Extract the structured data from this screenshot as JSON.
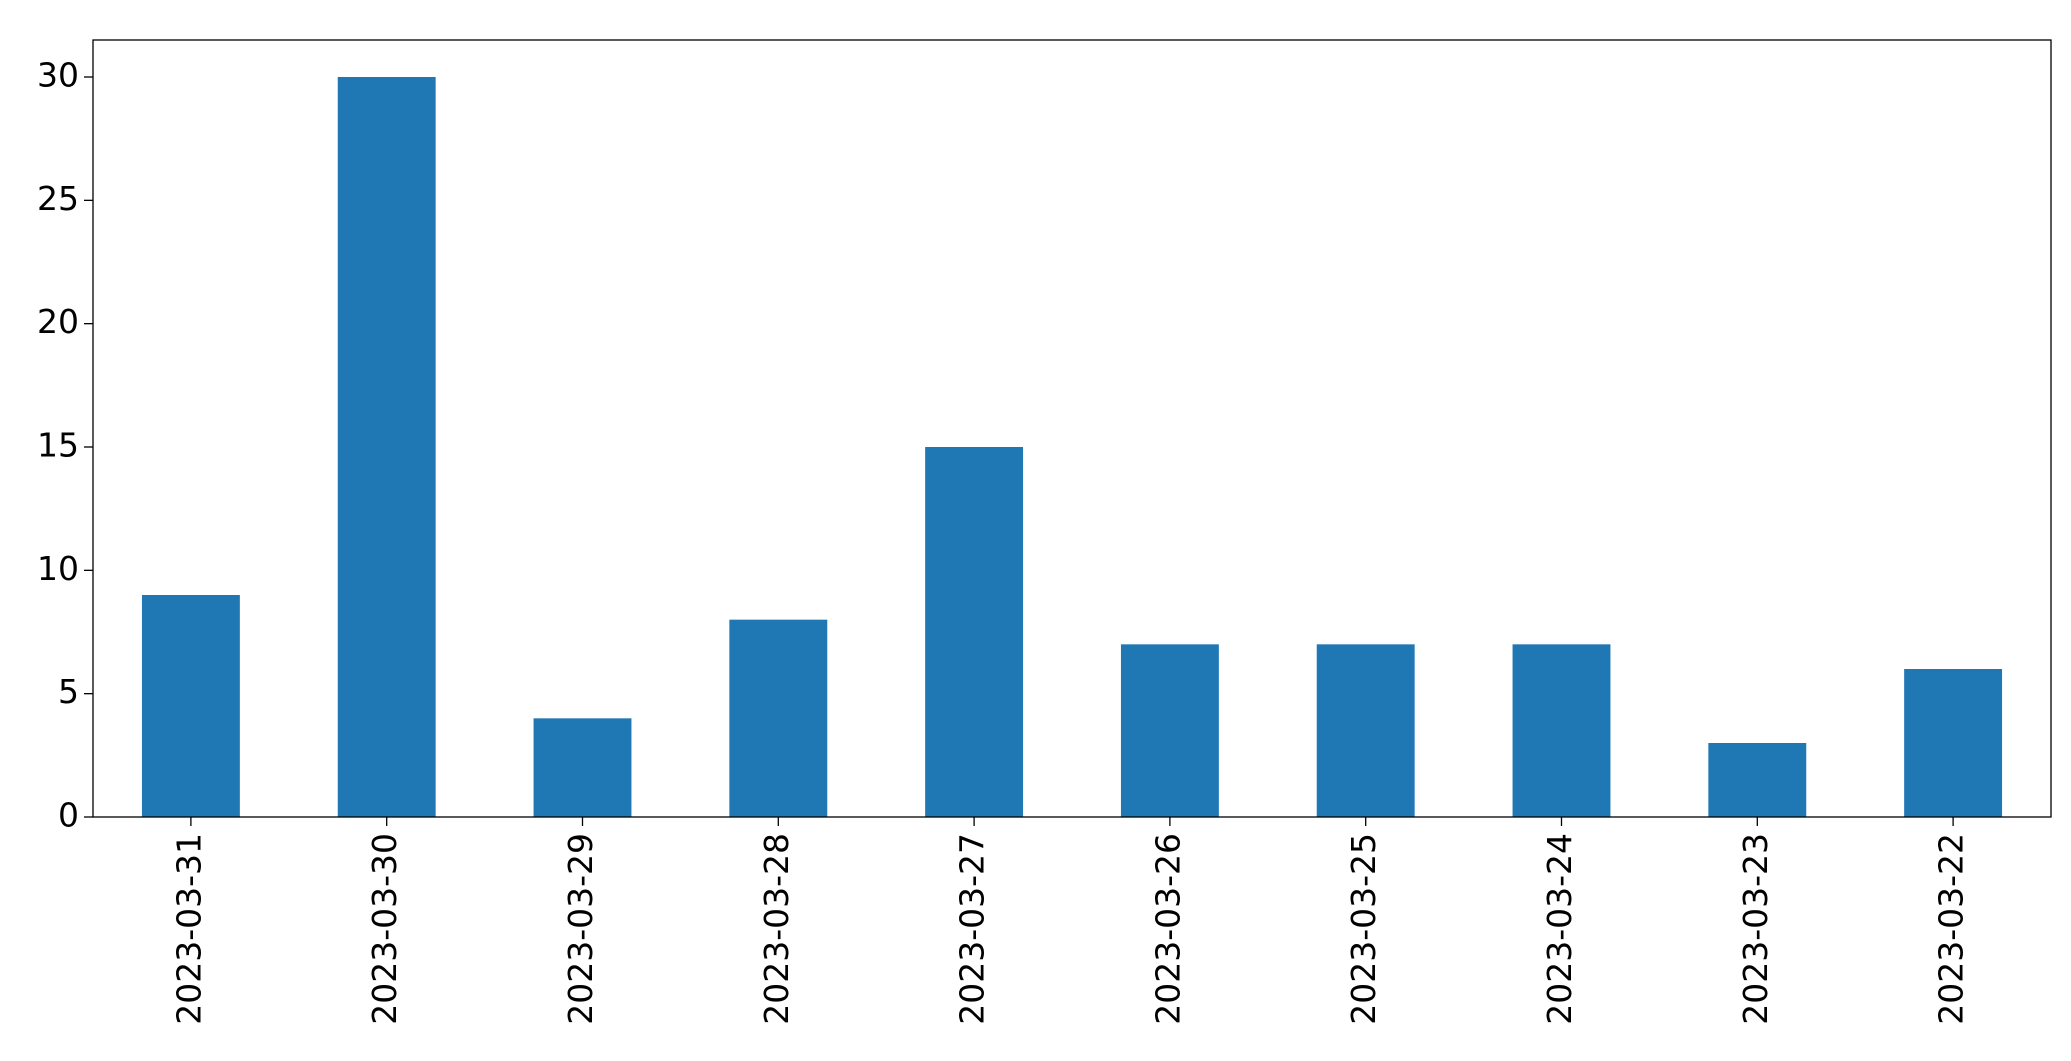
{
  "chart_data": {
    "type": "bar",
    "categories": [
      "2023-03-31",
      "2023-03-30",
      "2023-03-29",
      "2023-03-28",
      "2023-03-27",
      "2023-03-26",
      "2023-03-25",
      "2023-03-24",
      "2023-03-23",
      "2023-03-22"
    ],
    "values": [
      9,
      30,
      4,
      8,
      15,
      7,
      7,
      7,
      3,
      6
    ],
    "color": "#1f77b4",
    "ylim": [
      0,
      31.5
    ],
    "yticks": [
      0,
      5,
      10,
      15,
      20,
      25,
      30
    ],
    "grid": false
  }
}
